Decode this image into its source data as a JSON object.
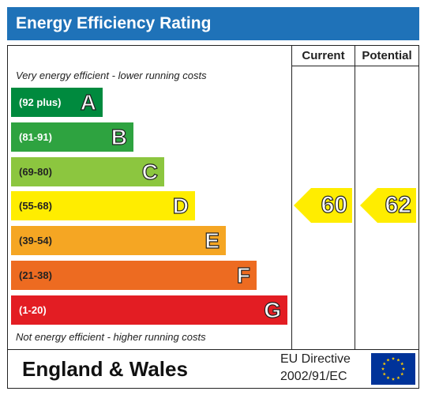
{
  "header": {
    "title": "Energy Efficiency Rating"
  },
  "columns": {
    "current": "Current",
    "potential": "Potential"
  },
  "notes": {
    "top": "Very energy efficient - lower running costs",
    "bottom": "Not energy efficient - higher running costs"
  },
  "chart_data": {
    "type": "bar",
    "title": "Energy Efficiency Rating",
    "categories": [
      "A",
      "B",
      "C",
      "D",
      "E",
      "F",
      "G"
    ],
    "bands": [
      {
        "letter": "A",
        "range": "(92 plus)",
        "color": "#008a3e",
        "text_color": "#ffffff"
      },
      {
        "letter": "B",
        "range": "(81-91)",
        "color": "#2ea340",
        "text_color": "#ffffff"
      },
      {
        "letter": "C",
        "range": "(69-80)",
        "color": "#8cc63f",
        "text_color": "#222222"
      },
      {
        "letter": "D",
        "range": "(55-68)",
        "color": "#ffed00",
        "text_color": "#222222"
      },
      {
        "letter": "E",
        "range": "(39-54)",
        "color": "#f5a623",
        "text_color": "#222222"
      },
      {
        "letter": "F",
        "range": "(21-38)",
        "color": "#ed6b21",
        "text_color": "#222222"
      },
      {
        "letter": "G",
        "range": "(1-20)",
        "color": "#e31d23",
        "text_color": "#ffffff"
      }
    ],
    "series": [
      {
        "name": "Current",
        "value": 60,
        "band": "D"
      },
      {
        "name": "Potential",
        "value": 62,
        "band": "D"
      }
    ],
    "arrow_color": "#ffed00"
  },
  "footer": {
    "region": "England & Wales",
    "directive_line1": "EU Directive",
    "directive_line2": "2002/91/EC",
    "flag_icon": "eu-flag-icon",
    "flag_color": "#003399",
    "star_color": "#ffcc00"
  }
}
